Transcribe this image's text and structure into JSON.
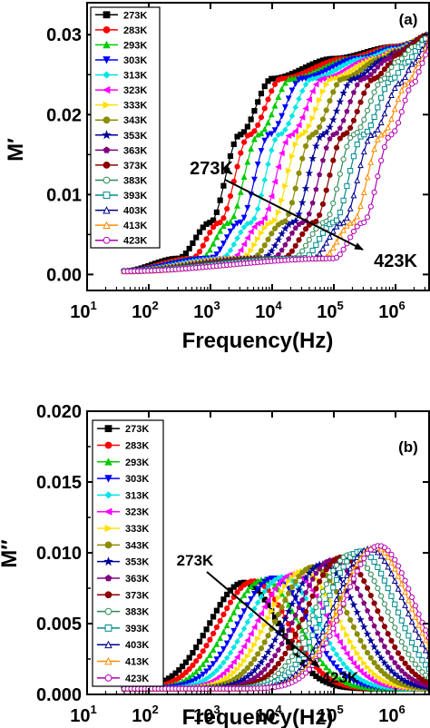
{
  "chart_data": [
    {
      "type": "line",
      "panel": "(a)",
      "xlabel": "Frequency(Hz)",
      "ylabel": "M′",
      "x_scale": "log",
      "xlim": [
        10,
        3500000
      ],
      "ylim": [
        -0.002,
        0.034
      ],
      "yticks": [
        "0.00",
        "0.01",
        "0.02",
        "0.03"
      ],
      "ytick_values": [
        0,
        0.01,
        0.02,
        0.03
      ],
      "xticks": [
        {
          "base": "10",
          "exp": "1"
        },
        {
          "base": "10",
          "exp": "2"
        },
        {
          "base": "10",
          "exp": "3"
        },
        {
          "base": "10",
          "exp": "4"
        },
        {
          "base": "10",
          "exp": "5"
        },
        {
          "base": "10",
          "exp": "6"
        }
      ],
      "xtick_values": [
        10,
        100,
        1000,
        10000,
        100000,
        1000000
      ],
      "annotations": {
        "start": "273K",
        "end": "423K"
      },
      "legend_position": "upper-left",
      "series": [
        {
          "name": "273K",
          "color": "#000000",
          "marker": "square",
          "filled": true,
          "data": [
            [
              40,
              0.0004
            ],
            [
              300,
              0.002
            ],
            [
              1000,
              0.0065
            ],
            [
              3000,
              0.0175
            ],
            [
              10000,
              0.0245
            ],
            [
              100000,
              0.027
            ],
            [
              1000000,
              0.0285
            ],
            [
              3500000,
              0.0295
            ]
          ]
        },
        {
          "name": "283K",
          "color": "#ff0000",
          "marker": "circle",
          "filled": true,
          "data": [
            [
              40,
              0.0004
            ],
            [
              500,
              0.002
            ],
            [
              1400,
              0.0065
            ],
            [
              4300,
              0.0175
            ],
            [
              14000,
              0.0245
            ],
            [
              150000,
              0.027
            ],
            [
              1000000,
              0.0285
            ],
            [
              3500000,
              0.0296
            ]
          ]
        },
        {
          "name": "293K",
          "color": "#00cc00",
          "marker": "triangle-up",
          "filled": true,
          "data": [
            [
              40,
              0.0004
            ],
            [
              700,
              0.002
            ],
            [
              2000,
              0.0065
            ],
            [
              6000,
              0.0175
            ],
            [
              20000,
              0.0245
            ],
            [
              200000,
              0.027
            ],
            [
              1000000,
              0.0284
            ],
            [
              3500000,
              0.0297
            ]
          ]
        },
        {
          "name": "303K",
          "color": "#0000ff",
          "marker": "triangle-down",
          "filled": true,
          "data": [
            [
              40,
              0.0004
            ],
            [
              1000,
              0.002
            ],
            [
              3000,
              0.0065
            ],
            [
              9000,
              0.0175
            ],
            [
              30000,
              0.0245
            ],
            [
              250000,
              0.027
            ],
            [
              1000000,
              0.0283
            ],
            [
              3500000,
              0.0297
            ]
          ]
        },
        {
          "name": "313K",
          "color": "#00e5e5",
          "marker": "diamond",
          "filled": true,
          "data": [
            [
              40,
              0.0004
            ],
            [
              1500,
              0.002
            ],
            [
              4500,
              0.0065
            ],
            [
              13000,
              0.0175
            ],
            [
              45000,
              0.0245
            ],
            [
              300000,
              0.027
            ],
            [
              1000000,
              0.0282
            ],
            [
              3500000,
              0.0298
            ]
          ]
        },
        {
          "name": "323K",
          "color": "#ff00ff",
          "marker": "triangle-left",
          "filled": true,
          "data": [
            [
              40,
              0.0004
            ],
            [
              2200,
              0.002
            ],
            [
              6500,
              0.0065
            ],
            [
              20000,
              0.0175
            ],
            [
              65000,
              0.0245
            ],
            [
              400000,
              0.027
            ],
            [
              1000000,
              0.0281
            ],
            [
              3500000,
              0.0298
            ]
          ]
        },
        {
          "name": "333K",
          "color": "#ffe000",
          "marker": "triangle-right",
          "filled": true,
          "data": [
            [
              40,
              0.0004
            ],
            [
              3200,
              0.002
            ],
            [
              10000,
              0.0065
            ],
            [
              30000,
              0.0175
            ],
            [
              95000,
              0.0245
            ],
            [
              500000,
              0.027
            ],
            [
              1000000,
              0.028
            ],
            [
              3500000,
              0.0299
            ]
          ]
        },
        {
          "name": "343K",
          "color": "#8c8c00",
          "marker": "circle",
          "filled": true,
          "data": [
            [
              40,
              0.0004
            ],
            [
              4700,
              0.002
            ],
            [
              15000,
              0.0065
            ],
            [
              45000,
              0.0175
            ],
            [
              140000,
              0.0245
            ],
            [
              600000,
              0.027
            ],
            [
              1000000,
              0.0279
            ],
            [
              3500000,
              0.0299
            ]
          ]
        },
        {
          "name": "353K",
          "color": "#000099",
          "marker": "star",
          "filled": true,
          "data": [
            [
              40,
              0.0004
            ],
            [
              7000,
              0.002
            ],
            [
              22000,
              0.0065
            ],
            [
              66000,
              0.0175
            ],
            [
              210000,
              0.0245
            ],
            [
              700000,
              0.027
            ],
            [
              1000000,
              0.0278
            ],
            [
              3500000,
              0.03
            ]
          ]
        },
        {
          "name": "363K",
          "color": "#800080",
          "marker": "pentagon",
          "filled": true,
          "data": [
            [
              40,
              0.0004
            ],
            [
              10000,
              0.002
            ],
            [
              32000,
              0.0065
            ],
            [
              100000,
              0.0175
            ],
            [
              300000,
              0.0245
            ],
            [
              800000,
              0.027
            ],
            [
              1000000,
              0.0277
            ],
            [
              3500000,
              0.03
            ]
          ]
        },
        {
          "name": "373K",
          "color": "#8b0000",
          "marker": "circle",
          "filled": true,
          "data": [
            [
              40,
              0.0004
            ],
            [
              15000,
              0.002
            ],
            [
              48000,
              0.0065
            ],
            [
              145000,
              0.0175
            ],
            [
              450000,
              0.0245
            ],
            [
              900000,
              0.0265
            ],
            [
              1000000,
              0.0275
            ],
            [
              3500000,
              0.03
            ]
          ]
        },
        {
          "name": "383K",
          "color": "#2e8b57",
          "marker": "circle",
          "filled": false,
          "data": [
            [
              40,
              0.0004
            ],
            [
              22000,
              0.002
            ],
            [
              70000,
              0.0065
            ],
            [
              210000,
              0.0175
            ],
            [
              650000,
              0.0245
            ],
            [
              1000000,
              0.0265
            ],
            [
              2000000,
              0.0285
            ],
            [
              3500000,
              0.03
            ]
          ]
        },
        {
          "name": "393K",
          "color": "#008b8b",
          "marker": "square",
          "filled": false,
          "data": [
            [
              40,
              0.0004
            ],
            [
              32000,
              0.002
            ],
            [
              100000,
              0.0065
            ],
            [
              300000,
              0.0175
            ],
            [
              900000,
              0.0245
            ],
            [
              1500000,
              0.0265
            ],
            [
              2500000,
              0.0285
            ],
            [
              3500000,
              0.03
            ]
          ]
        },
        {
          "name": "403K",
          "color": "#00008b",
          "marker": "triangle-up",
          "filled": false,
          "data": [
            [
              40,
              0.0004
            ],
            [
              45000,
              0.002
            ],
            [
              140000,
              0.0065
            ],
            [
              420000,
              0.0175
            ],
            [
              1200000,
              0.024
            ],
            [
              2000000,
              0.0265
            ],
            [
              3000000,
              0.0285
            ],
            [
              3500000,
              0.03
            ]
          ]
        },
        {
          "name": "413K",
          "color": "#ff8c00",
          "marker": "triangle-up",
          "filled": false,
          "data": [
            [
              40,
              0.0004
            ],
            [
              65000,
              0.002
            ],
            [
              200000,
              0.0065
            ],
            [
              600000,
              0.0175
            ],
            [
              1600000,
              0.024
            ],
            [
              2500000,
              0.0265
            ],
            [
              3200000,
              0.0285
            ],
            [
              3500000,
              0.03
            ]
          ]
        },
        {
          "name": "423K",
          "color": "#b300b3",
          "marker": "circle",
          "filled": false,
          "data": [
            [
              40,
              0.0004
            ],
            [
              100000,
              0.002
            ],
            [
              300000,
              0.0065
            ],
            [
              850000,
              0.0175
            ],
            [
              2000000,
              0.024
            ],
            [
              2800000,
              0.0265
            ],
            [
              3400000,
              0.0285
            ],
            [
              3500000,
              0.03
            ]
          ]
        }
      ]
    },
    {
      "type": "line",
      "panel": "(b)",
      "xlabel": "Frequency(Hz)",
      "ylabel": "M″",
      "x_scale": "log",
      "xlim": [
        10,
        3500000
      ],
      "ylim": [
        0,
        0.02
      ],
      "yticks": [
        "0.000",
        "0.005",
        "0.010",
        "0.015",
        "0.020"
      ],
      "ytick_values": [
        0,
        0.005,
        0.01,
        0.015,
        0.02
      ],
      "xticks": [
        {
          "base": "10",
          "exp": "1"
        },
        {
          "base": "10",
          "exp": "2"
        },
        {
          "base": "10",
          "exp": "3"
        },
        {
          "base": "10",
          "exp": "4"
        },
        {
          "base": "10",
          "exp": "5"
        },
        {
          "base": "10",
          "exp": "6"
        }
      ],
      "xtick_values": [
        10,
        100,
        1000,
        10000,
        100000,
        1000000
      ],
      "annotations": {
        "start": "273K",
        "end": "423K"
      },
      "legend_position": "upper-left",
      "series": [
        {
          "name": "273K",
          "color": "#000000",
          "marker": "square",
          "filled": true,
          "peak_f": 3500,
          "peak_m": 0.0079
        },
        {
          "name": "283K",
          "color": "#ff0000",
          "marker": "circle",
          "filled": true,
          "peak_f": 5000,
          "peak_m": 0.008
        },
        {
          "name": "293K",
          "color": "#00cc00",
          "marker": "triangle-up",
          "filled": true,
          "peak_f": 7200,
          "peak_m": 0.0081
        },
        {
          "name": "303K",
          "color": "#0000ff",
          "marker": "triangle-down",
          "filled": true,
          "peak_f": 10500,
          "peak_m": 0.0082
        },
        {
          "name": "313K",
          "color": "#00e5e5",
          "marker": "diamond",
          "filled": true,
          "peak_f": 15000,
          "peak_m": 0.0083
        },
        {
          "name": "323K",
          "color": "#ff00ff",
          "marker": "triangle-left",
          "filled": true,
          "peak_f": 22000,
          "peak_m": 0.0085
        },
        {
          "name": "333K",
          "color": "#ffe000",
          "marker": "triangle-right",
          "filled": true,
          "peak_f": 32000,
          "peak_m": 0.0087
        },
        {
          "name": "343K",
          "color": "#8c8c00",
          "marker": "circle",
          "filled": true,
          "peak_f": 46000,
          "peak_m": 0.009
        },
        {
          "name": "353K",
          "color": "#000099",
          "marker": "star",
          "filled": true,
          "peak_f": 66000,
          "peak_m": 0.0092
        },
        {
          "name": "363K",
          "color": "#800080",
          "marker": "pentagon",
          "filled": true,
          "peak_f": 95000,
          "peak_m": 0.0095
        },
        {
          "name": "373K",
          "color": "#8b0000",
          "marker": "circle",
          "filled": true,
          "peak_f": 135000,
          "peak_m": 0.0097
        },
        {
          "name": "383K",
          "color": "#2e8b57",
          "marker": "circle",
          "filled": false,
          "peak_f": 190000,
          "peak_m": 0.0099
        },
        {
          "name": "393K",
          "color": "#008b8b",
          "marker": "square",
          "filled": false,
          "peak_f": 270000,
          "peak_m": 0.0101
        },
        {
          "name": "403K",
          "color": "#00008b",
          "marker": "triangle-up",
          "filled": false,
          "peak_f": 380000,
          "peak_m": 0.0103
        },
        {
          "name": "413K",
          "color": "#ff8c00",
          "marker": "triangle-up",
          "filled": false,
          "peak_f": 460000,
          "peak_m": 0.0104
        },
        {
          "name": "423K",
          "color": "#b300b3",
          "marker": "circle",
          "filled": false,
          "peak_f": 540000,
          "peak_m": 0.0105
        }
      ]
    }
  ]
}
